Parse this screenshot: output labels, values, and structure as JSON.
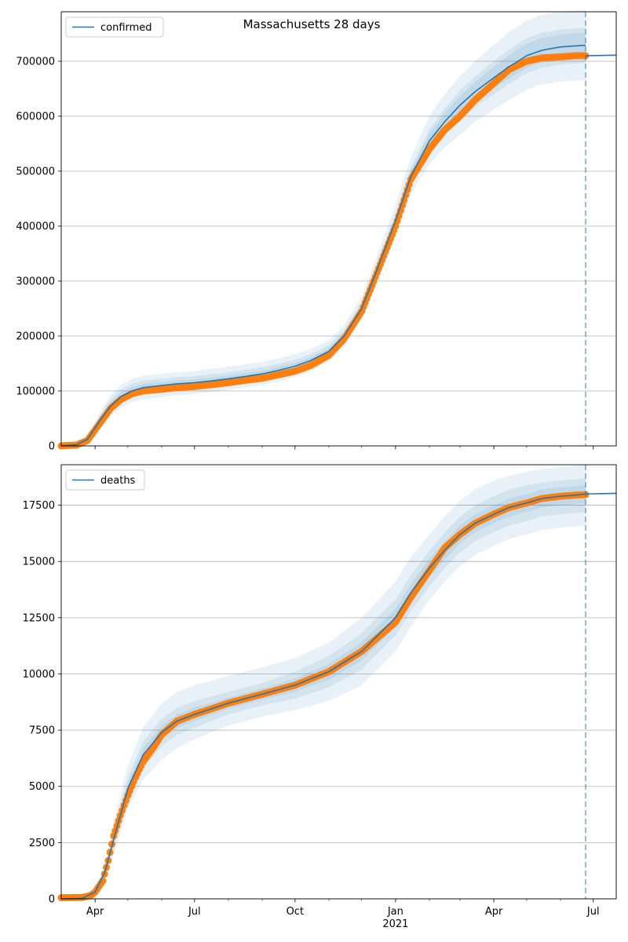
{
  "chart_data": [
    {
      "type": "line",
      "title": "Massachusetts 28 days",
      "xlabel": "",
      "ylabel": "",
      "xlim": [
        "2020-03-01",
        "2021-07-22"
      ],
      "ylim": [
        0,
        790000
      ],
      "grid": "horizontal",
      "legend_position": "top-left",
      "x_ticks": [
        {
          "date": "2020-04-01",
          "label": "Apr"
        },
        {
          "date": "2020-07-01",
          "label": "Jul"
        },
        {
          "date": "2020-10-01",
          "label": "Oct"
        },
        {
          "date": "2021-01-01",
          "label": "Jan"
        },
        {
          "date": "2021-04-01",
          "label": "Apr"
        },
        {
          "date": "2021-07-01",
          "label": "Jul"
        }
      ],
      "y_ticks": [
        {
          "value": 0,
          "label": "0"
        },
        {
          "value": 100000,
          "label": "100000"
        },
        {
          "value": 200000,
          "label": "200000"
        },
        {
          "value": 300000,
          "label": "300000"
        },
        {
          "value": 400000,
          "label": "400000"
        },
        {
          "value": 500000,
          "label": "500000"
        },
        {
          "value": 600000,
          "label": "600000"
        },
        {
          "value": 700000,
          "label": "700000"
        }
      ],
      "forecast_start": "2021-06-24",
      "series": [
        {
          "name": "confirmed",
          "kind": "model",
          "x": [
            "2020-03-01",
            "2020-03-15",
            "2020-03-25",
            "2020-04-05",
            "2020-04-15",
            "2020-04-25",
            "2020-05-05",
            "2020-05-15",
            "2020-06-01",
            "2020-06-15",
            "2020-07-01",
            "2020-07-15",
            "2020-08-01",
            "2020-08-15",
            "2020-09-01",
            "2020-09-15",
            "2020-10-01",
            "2020-10-15",
            "2020-11-01",
            "2020-11-15",
            "2020-12-01",
            "2020-12-15",
            "2021-01-01",
            "2021-01-15",
            "2021-02-01",
            "2021-02-15",
            "2021-03-01",
            "2021-03-15",
            "2021-04-01",
            "2021-04-15",
            "2021-05-01",
            "2021-05-15",
            "2021-06-01",
            "2021-06-15",
            "2021-06-24"
          ],
          "y": [
            0,
            2000,
            12000,
            45000,
            72000,
            90000,
            100000,
            106000,
            110000,
            113000,
            115000,
            118000,
            122000,
            126000,
            131000,
            137000,
            145000,
            155000,
            172000,
            200000,
            250000,
            320000,
            410000,
            490000,
            555000,
            590000,
            620000,
            645000,
            670000,
            690000,
            710000,
            720000,
            726000,
            728000,
            729000
          ],
          "color": "#1f77b4"
        },
        {
          "name": "",
          "kind": "forecast",
          "x": [
            "2021-06-24",
            "2021-07-22"
          ],
          "y": [
            710000,
            711000
          ],
          "color": "#1f77b4"
        },
        {
          "name": "",
          "kind": "observed",
          "x": [
            "2020-03-01",
            "2020-03-15",
            "2020-03-25",
            "2020-04-05",
            "2020-04-15",
            "2020-04-25",
            "2020-05-05",
            "2020-05-15",
            "2020-06-01",
            "2020-06-15",
            "2020-07-01",
            "2020-07-15",
            "2020-08-01",
            "2020-08-15",
            "2020-09-01",
            "2020-09-15",
            "2020-10-01",
            "2020-10-15",
            "2020-11-01",
            "2020-11-15",
            "2020-12-01",
            "2020-12-15",
            "2021-01-01",
            "2021-01-15",
            "2021-02-01",
            "2021-02-15",
            "2021-03-01",
            "2021-03-15",
            "2021-04-01",
            "2021-04-15",
            "2021-05-01",
            "2021-05-15",
            "2021-06-01",
            "2021-06-15",
            "2021-06-24"
          ],
          "y": [
            0,
            1500,
            10000,
            40000,
            68000,
            85000,
            95000,
            100000,
            103000,
            106000,
            108000,
            111000,
            115000,
            119000,
            123000,
            129000,
            136000,
            146000,
            165000,
            195000,
            245000,
            315000,
            400000,
            485000,
            540000,
            575000,
            600000,
            630000,
            660000,
            685000,
            700000,
            706000,
            708000,
            710000,
            710000
          ],
          "color": "#ff7f0e"
        }
      ],
      "bands": [
        {
          "lower": [
            0,
            1700,
            9000,
            33000,
            55000,
            70000,
            80000,
            85000,
            89000,
            92000,
            95000,
            98000,
            102000,
            106000,
            111000,
            117000,
            125000,
            136000,
            154000,
            182000,
            230000,
            296000,
            384000,
            458000,
            513000,
            543000,
            566000,
            590000,
            612000,
            630000,
            648000,
            658000,
            663000,
            665000,
            665000
          ],
          "upper": [
            0,
            2300,
            15000,
            60000,
            92000,
            112000,
            122000,
            128000,
            131000,
            134000,
            136000,
            140000,
            144000,
            148000,
            153000,
            159000,
            167000,
            176000,
            192000,
            220000,
            272000,
            345000,
            440000,
            525000,
            600000,
            640000,
            673000,
            700000,
            730000,
            753000,
            774000,
            785000,
            790000,
            792000,
            793000
          ],
          "color": "#1f77b4",
          "opacity": 0.1
        },
        {
          "lower": [
            0,
            1800,
            10000,
            37000,
            62000,
            78000,
            88000,
            94000,
            98000,
            101000,
            104000,
            107000,
            111000,
            115000,
            120000,
            126000,
            134000,
            144000,
            162000,
            190000,
            240000,
            308000,
            397000,
            474000,
            534000,
            566000,
            593000,
            617000,
            640000,
            659000,
            678000,
            688000,
            694000,
            696000,
            697000
          ],
          "upper": [
            0,
            2200,
            14000,
            54000,
            84000,
            103000,
            113000,
            119000,
            122000,
            125000,
            127000,
            130000,
            134000,
            138000,
            143000,
            149000,
            157000,
            167000,
            183000,
            211000,
            262000,
            333000,
            424000,
            507000,
            576000,
            614000,
            647000,
            673000,
            700000,
            721000,
            742000,
            752000,
            758000,
            760000,
            761000
          ],
          "color": "#1f77b4",
          "opacity": 0.1
        },
        {
          "lower": [
            0,
            1900,
            11000,
            41000,
            67000,
            84000,
            94000,
            100000,
            104000,
            107000,
            109000,
            112000,
            116000,
            120000,
            125000,
            131000,
            139000,
            149000,
            166000,
            194000,
            244000,
            313000,
            402000,
            480000,
            542000,
            575000,
            603000,
            627000,
            650000,
            669000,
            688000,
            698000,
            703000,
            705000,
            706000
          ],
          "upper": [
            0,
            2100,
            13000,
            50000,
            78000,
            97000,
            107000,
            113000,
            116000,
            119000,
            121000,
            124000,
            128000,
            132000,
            137000,
            143000,
            151000,
            161000,
            178000,
            206000,
            256000,
            327000,
            418000,
            500000,
            568000,
            605000,
            637000,
            663000,
            690000,
            711000,
            732000,
            742000,
            749000,
            751000,
            752000
          ],
          "color": "#1f77b4",
          "opacity": 0.1
        }
      ]
    },
    {
      "type": "line",
      "title": "",
      "xlabel": "2021",
      "ylabel": "",
      "xlim": [
        "2020-03-01",
        "2021-07-22"
      ],
      "ylim": [
        0,
        19300
      ],
      "grid": "horizontal",
      "legend_position": "top-left",
      "x_ticks": [
        {
          "date": "2020-04-01",
          "label": "Apr"
        },
        {
          "date": "2020-07-01",
          "label": "Jul"
        },
        {
          "date": "2020-10-01",
          "label": "Oct"
        },
        {
          "date": "2021-01-01",
          "label": "Jan"
        },
        {
          "date": "2021-04-01",
          "label": "Apr"
        },
        {
          "date": "2021-07-01",
          "label": "Jul"
        }
      ],
      "y_ticks": [
        {
          "value": 0,
          "label": "0"
        },
        {
          "value": 2500,
          "label": "2500"
        },
        {
          "value": 5000,
          "label": "5000"
        },
        {
          "value": 7500,
          "label": "7500"
        },
        {
          "value": 10000,
          "label": "10000"
        },
        {
          "value": 12500,
          "label": "12500"
        },
        {
          "value": 15000,
          "label": "15000"
        },
        {
          "value": 17500,
          "label": "17500"
        }
      ],
      "forecast_start": "2021-06-24",
      "series": [
        {
          "name": "deaths",
          "kind": "model",
          "x": [
            "2020-03-01",
            "2020-03-20",
            "2020-04-01",
            "2020-04-10",
            "2020-04-20",
            "2020-05-01",
            "2020-05-15",
            "2020-06-01",
            "2020-06-15",
            "2020-07-01",
            "2020-08-01",
            "2020-09-01",
            "2020-10-01",
            "2020-11-01",
            "2020-12-01",
            "2021-01-01",
            "2021-01-15",
            "2021-02-01",
            "2021-02-15",
            "2021-03-01",
            "2021-03-15",
            "2021-04-01",
            "2021-04-15",
            "2021-05-01",
            "2021-05-15",
            "2021-06-01",
            "2021-06-15",
            "2021-06-24"
          ],
          "y": [
            0,
            20,
            300,
            1200,
            3000,
            4900,
            6400,
            7400,
            7900,
            8200,
            8700,
            9100,
            9500,
            10100,
            11000,
            12500,
            13600,
            14700,
            15500,
            16200,
            16700,
            17100,
            17400,
            17600,
            17800,
            17900,
            17950,
            18000
          ],
          "color": "#1f77b4"
        },
        {
          "name": "",
          "kind": "forecast",
          "x": [
            "2021-06-24",
            "2021-07-22"
          ],
          "y": [
            18000,
            18030
          ],
          "color": "#1f77b4"
        },
        {
          "name": "",
          "kind": "observed",
          "x": [
            "2020-03-01",
            "2020-03-20",
            "2020-03-28",
            "2020-04-01",
            "2020-04-08",
            "2020-04-13",
            "2020-04-18",
            "2020-04-24",
            "2020-05-01",
            "2020-05-08",
            "2020-05-15",
            "2020-05-24",
            "2020-06-01",
            "2020-06-15",
            "2020-07-01",
            "2020-08-01",
            "2020-09-01",
            "2020-10-01",
            "2020-11-01",
            "2020-12-01",
            "2021-01-01",
            "2021-01-15",
            "2021-02-01",
            "2021-02-15",
            "2021-03-01",
            "2021-03-15",
            "2021-04-01",
            "2021-04-15",
            "2021-05-01",
            "2021-05-15",
            "2021-06-01",
            "2021-06-15",
            "2021-06-24"
          ],
          "y": [
            50,
            60,
            150,
            300,
            800,
            1700,
            2800,
            3700,
            4600,
            5400,
            6100,
            6700,
            7300,
            7900,
            8200,
            8700,
            9100,
            9500,
            10100,
            11000,
            12300,
            13400,
            14600,
            15600,
            16200,
            16700,
            17100,
            17400,
            17600,
            17800,
            17900,
            17950,
            17970
          ],
          "color": "#ff7f0e"
        }
      ],
      "bands": [
        {
          "lower": [
            0,
            15,
            220,
            900,
            2300,
            4000,
            5300,
            6200,
            6700,
            7100,
            7700,
            8100,
            8400,
            8800,
            9500,
            11000,
            12100,
            13300,
            14100,
            14800,
            15300,
            15700,
            16000,
            16200,
            16400,
            16500,
            16550,
            16600
          ],
          "upper": [
            0,
            25,
            400,
            1600,
            3800,
            5900,
            7600,
            8700,
            9200,
            9500,
            9900,
            10300,
            10700,
            11400,
            12500,
            14100,
            15200,
            16200,
            17000,
            17700,
            18200,
            18600,
            18800,
            19000,
            19100,
            19200,
            19250,
            19300
          ],
          "color": "#1f77b4",
          "opacity": 0.1
        },
        {
          "lower": [
            0,
            17,
            250,
            1000,
            2600,
            4400,
            5800,
            6800,
            7300,
            7600,
            8200,
            8600,
            8900,
            9400,
            10200,
            11700,
            12800,
            13900,
            14700,
            15400,
            15900,
            16300,
            16600,
            16800,
            17000,
            17100,
            17150,
            17200
          ],
          "upper": [
            0,
            23,
            350,
            1400,
            3400,
            5400,
            7000,
            8000,
            8500,
            8800,
            9200,
            9600,
            10100,
            10800,
            11800,
            13300,
            14400,
            15500,
            16300,
            17000,
            17500,
            17900,
            18200,
            18400,
            18500,
            18600,
            18650,
            18700
          ],
          "color": "#1f77b4",
          "opacity": 0.1
        },
        {
          "lower": [
            0,
            18,
            270,
            1100,
            2800,
            4650,
            6100,
            7100,
            7600,
            7900,
            8450,
            8850,
            9200,
            9750,
            10600,
            12100,
            13200,
            14300,
            15100,
            15800,
            16300,
            16700,
            17000,
            17200,
            17400,
            17500,
            17550,
            17600
          ],
          "upper": [
            0,
            22,
            330,
            1300,
            3200,
            5150,
            6700,
            7700,
            8200,
            8500,
            8950,
            9350,
            9800,
            10450,
            11400,
            12900,
            14000,
            15100,
            15900,
            16600,
            17100,
            17500,
            17800,
            18000,
            18200,
            18300,
            18350,
            18400
          ],
          "color": "#1f77b4",
          "opacity": 0.1
        }
      ]
    }
  ]
}
